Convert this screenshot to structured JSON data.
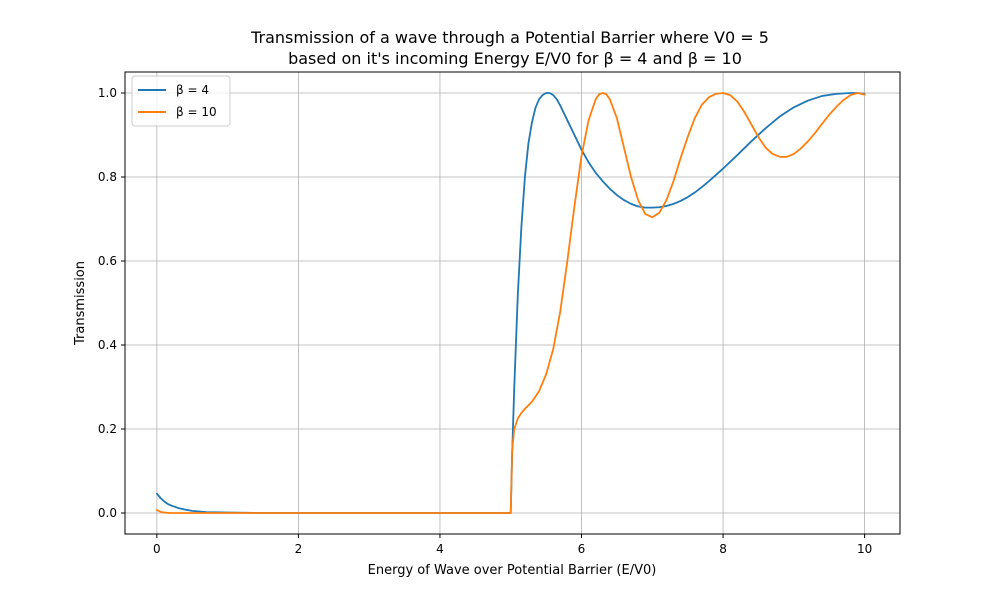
{
  "chart_data": {
    "type": "line",
    "title": [
      "Transmission of a wave through a Potential Barrier where V0 = 5",
      "based on it's incoming Energy E/V0 for β = 4 and β = 10"
    ],
    "xlabel": "Energy of Wave over Potential Barrier (E/V0)",
    "ylabel": "Transmission",
    "xlim": [
      -0.45,
      10.5
    ],
    "ylim": [
      -0.05,
      1.05
    ],
    "xticks": [
      0,
      2,
      4,
      6,
      8,
      10
    ],
    "yticks": [
      0.0,
      0.2,
      0.4,
      0.6,
      0.8,
      1.0
    ],
    "xtick_labels": [
      "0",
      "2",
      "4",
      "6",
      "8",
      "10"
    ],
    "ytick_labels": [
      "0.0",
      "0.2",
      "0.4",
      "0.6",
      "0.8",
      "1.0"
    ],
    "grid": true,
    "legend": "top-left",
    "series": [
      {
        "name": "β = 4",
        "color": "#1f77b4",
        "points": [
          [
            0.0,
            0.046
          ],
          [
            0.05,
            0.036
          ],
          [
            0.1,
            0.028
          ],
          [
            0.15,
            0.022
          ],
          [
            0.2,
            0.018
          ],
          [
            0.3,
            0.012
          ],
          [
            0.4,
            0.008
          ],
          [
            0.5,
            0.005
          ],
          [
            0.7,
            0.002
          ],
          [
            1.0,
            0.001
          ],
          [
            1.5,
            0.0
          ],
          [
            2.0,
            0.0
          ],
          [
            3.0,
            0.0
          ],
          [
            4.0,
            0.0
          ],
          [
            4.9,
            0.0
          ],
          [
            5.0,
            0.0
          ],
          [
            5.02,
            0.14
          ],
          [
            5.05,
            0.3
          ],
          [
            5.1,
            0.52
          ],
          [
            5.15,
            0.68
          ],
          [
            5.2,
            0.8
          ],
          [
            5.25,
            0.88
          ],
          [
            5.3,
            0.93
          ],
          [
            5.35,
            0.965
          ],
          [
            5.4,
            0.985
          ],
          [
            5.45,
            0.995
          ],
          [
            5.5,
            1.0
          ],
          [
            5.55,
            1.0
          ],
          [
            5.6,
            0.995
          ],
          [
            5.65,
            0.985
          ],
          [
            5.7,
            0.97
          ],
          [
            5.8,
            0.935
          ],
          [
            5.9,
            0.9
          ],
          [
            6.0,
            0.865
          ],
          [
            6.1,
            0.835
          ],
          [
            6.2,
            0.81
          ],
          [
            6.3,
            0.79
          ],
          [
            6.4,
            0.772
          ],
          [
            6.5,
            0.757
          ],
          [
            6.6,
            0.745
          ],
          [
            6.7,
            0.736
          ],
          [
            6.8,
            0.73
          ],
          [
            6.9,
            0.727
          ],
          [
            7.0,
            0.727
          ],
          [
            7.1,
            0.728
          ],
          [
            7.2,
            0.731
          ],
          [
            7.3,
            0.736
          ],
          [
            7.4,
            0.743
          ],
          [
            7.5,
            0.752
          ],
          [
            7.6,
            0.763
          ],
          [
            7.7,
            0.776
          ],
          [
            7.8,
            0.79
          ],
          [
            7.9,
            0.805
          ],
          [
            8.0,
            0.82
          ],
          [
            8.2,
            0.852
          ],
          [
            8.4,
            0.885
          ],
          [
            8.6,
            0.916
          ],
          [
            8.8,
            0.944
          ],
          [
            9.0,
            0.966
          ],
          [
            9.2,
            0.982
          ],
          [
            9.4,
            0.993
          ],
          [
            9.6,
            0.998
          ],
          [
            9.8,
            1.0
          ],
          [
            9.9,
            1.0
          ],
          [
            10.0,
            0.998
          ]
        ]
      },
      {
        "name": "β = 10",
        "color": "#ff7f0e",
        "points": [
          [
            0.0,
            0.007
          ],
          [
            0.05,
            0.003
          ],
          [
            0.1,
            0.001
          ],
          [
            0.2,
            0.0
          ],
          [
            1.0,
            0.0
          ],
          [
            2.0,
            0.0
          ],
          [
            3.0,
            0.0
          ],
          [
            4.0,
            0.0
          ],
          [
            4.9,
            0.0
          ],
          [
            5.0,
            0.0
          ],
          [
            5.02,
            0.15
          ],
          [
            5.05,
            0.2
          ],
          [
            5.1,
            0.225
          ],
          [
            5.15,
            0.238
          ],
          [
            5.2,
            0.248
          ],
          [
            5.3,
            0.265
          ],
          [
            5.4,
            0.29
          ],
          [
            5.5,
            0.33
          ],
          [
            5.6,
            0.39
          ],
          [
            5.7,
            0.48
          ],
          [
            5.8,
            0.6
          ],
          [
            5.9,
            0.73
          ],
          [
            6.0,
            0.85
          ],
          [
            6.1,
            0.935
          ],
          [
            6.2,
            0.985
          ],
          [
            6.25,
            0.997
          ],
          [
            6.3,
            1.0
          ],
          [
            6.35,
            0.997
          ],
          [
            6.4,
            0.985
          ],
          [
            6.5,
            0.94
          ],
          [
            6.6,
            0.87
          ],
          [
            6.7,
            0.8
          ],
          [
            6.8,
            0.745
          ],
          [
            6.9,
            0.712
          ],
          [
            7.0,
            0.704
          ],
          [
            7.1,
            0.715
          ],
          [
            7.2,
            0.745
          ],
          [
            7.3,
            0.79
          ],
          [
            7.4,
            0.845
          ],
          [
            7.5,
            0.895
          ],
          [
            7.6,
            0.94
          ],
          [
            7.7,
            0.972
          ],
          [
            7.8,
            0.99
          ],
          [
            7.9,
            0.998
          ],
          [
            8.0,
            1.0
          ],
          [
            8.1,
            0.995
          ],
          [
            8.2,
            0.98
          ],
          [
            8.3,
            0.955
          ],
          [
            8.4,
            0.925
          ],
          [
            8.5,
            0.895
          ],
          [
            8.6,
            0.87
          ],
          [
            8.7,
            0.855
          ],
          [
            8.8,
            0.848
          ],
          [
            8.9,
            0.848
          ],
          [
            9.0,
            0.855
          ],
          [
            9.1,
            0.868
          ],
          [
            9.2,
            0.885
          ],
          [
            9.3,
            0.905
          ],
          [
            9.4,
            0.927
          ],
          [
            9.5,
            0.948
          ],
          [
            9.6,
            0.967
          ],
          [
            9.7,
            0.983
          ],
          [
            9.8,
            0.995
          ],
          [
            9.9,
            1.0
          ],
          [
            10.0,
            0.996
          ]
        ]
      }
    ]
  }
}
